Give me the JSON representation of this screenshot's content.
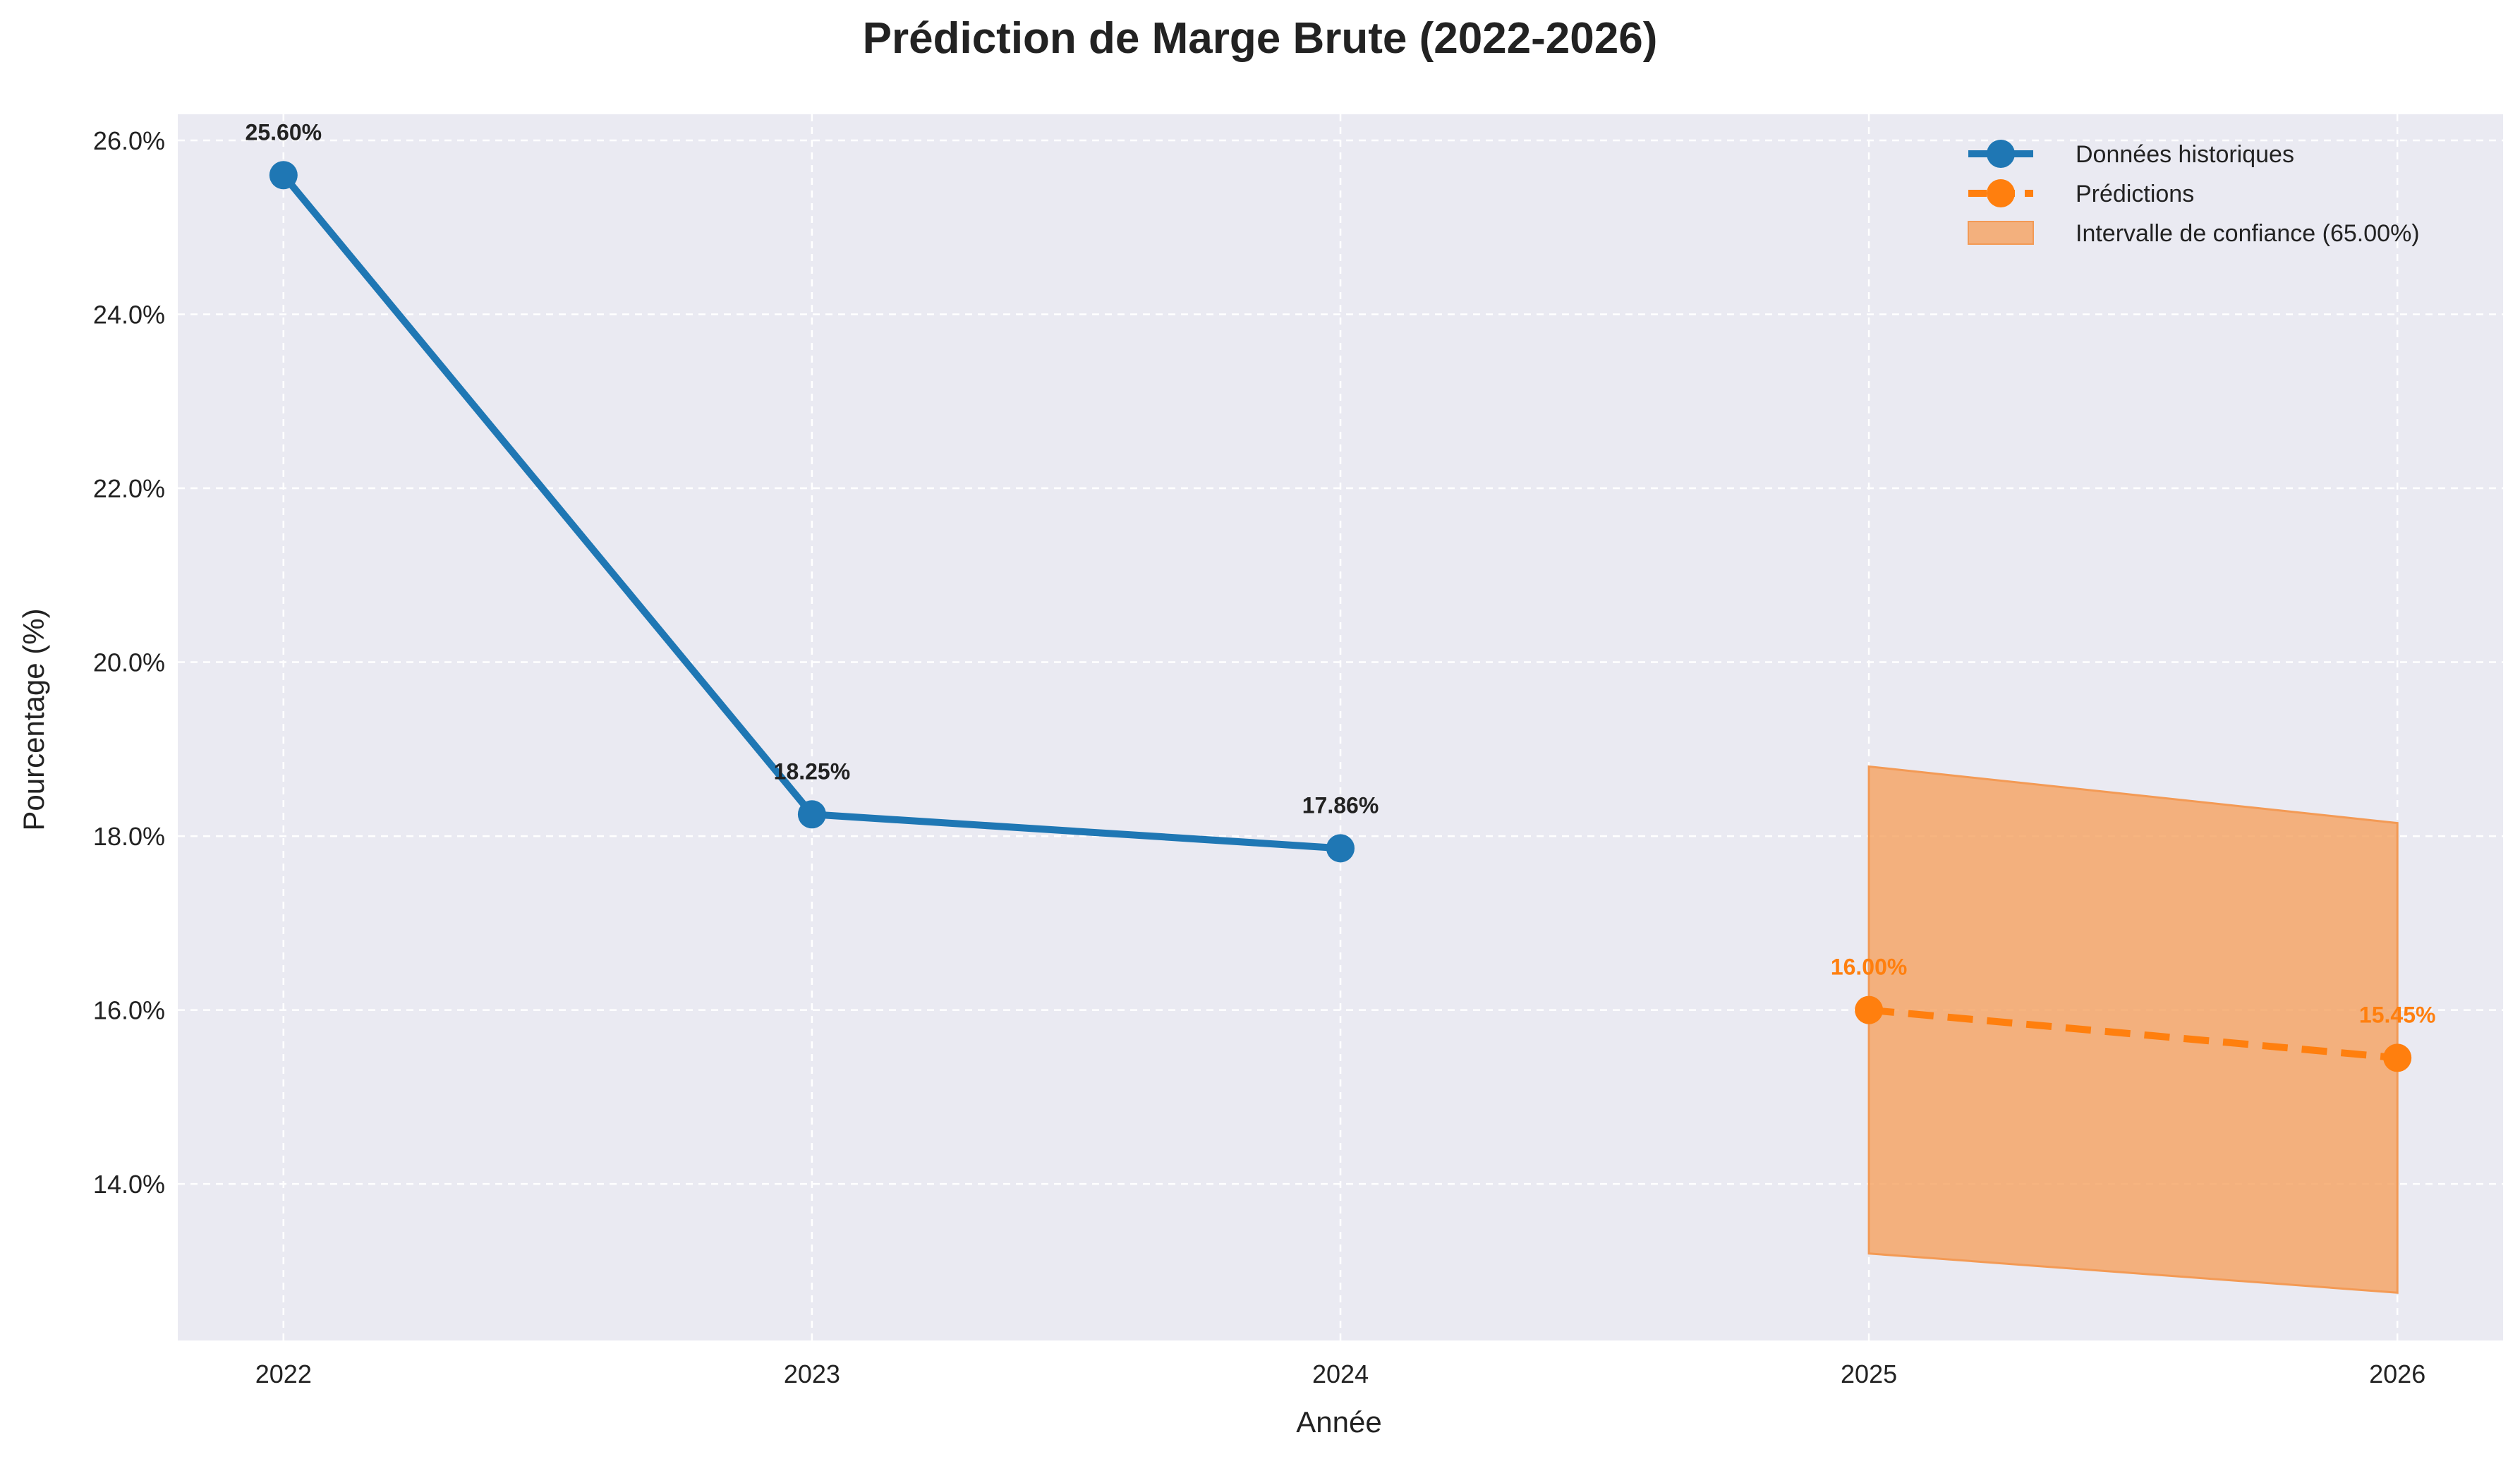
{
  "chart_data": {
    "type": "line",
    "title": "Prédiction de Marge Brute (2022-2026)",
    "xlabel": "Année",
    "ylabel": "Pourcentage (%)",
    "x_ticks": [
      "2022",
      "2023",
      "2024",
      "2025",
      "2026"
    ],
    "y_ticks": [
      "14.0%",
      "16.0%",
      "18.0%",
      "20.0%",
      "22.0%",
      "24.0%",
      "26.0%"
    ],
    "y_tick_values": [
      14,
      16,
      18,
      20,
      22,
      24,
      26
    ],
    "xlim": [
      2021.8,
      2026.2
    ],
    "ylim": [
      12.2,
      26.3
    ],
    "grid": true,
    "legend_position": "top-right",
    "series": [
      {
        "name": "Données historiques",
        "color": "#1f77b4",
        "style": "solid",
        "x": [
          2022,
          2023,
          2024
        ],
        "y": [
          25.6,
          18.25,
          17.86
        ],
        "labels": [
          "25.60%",
          "18.25%",
          "17.86%"
        ]
      },
      {
        "name": "Prédictions",
        "color": "#ff7f0e",
        "style": "dashed",
        "x": [
          2025,
          2026
        ],
        "y": [
          16.0,
          15.45
        ],
        "labels": [
          "16.00%",
          "15.45%"
        ]
      }
    ],
    "confidence_interval": {
      "name": "Intervalle de confiance (65.00%)",
      "color": "#f5a15f",
      "x": [
        2025,
        2026
      ],
      "upper": [
        18.8,
        18.15
      ],
      "lower": [
        13.2,
        12.75
      ]
    }
  }
}
